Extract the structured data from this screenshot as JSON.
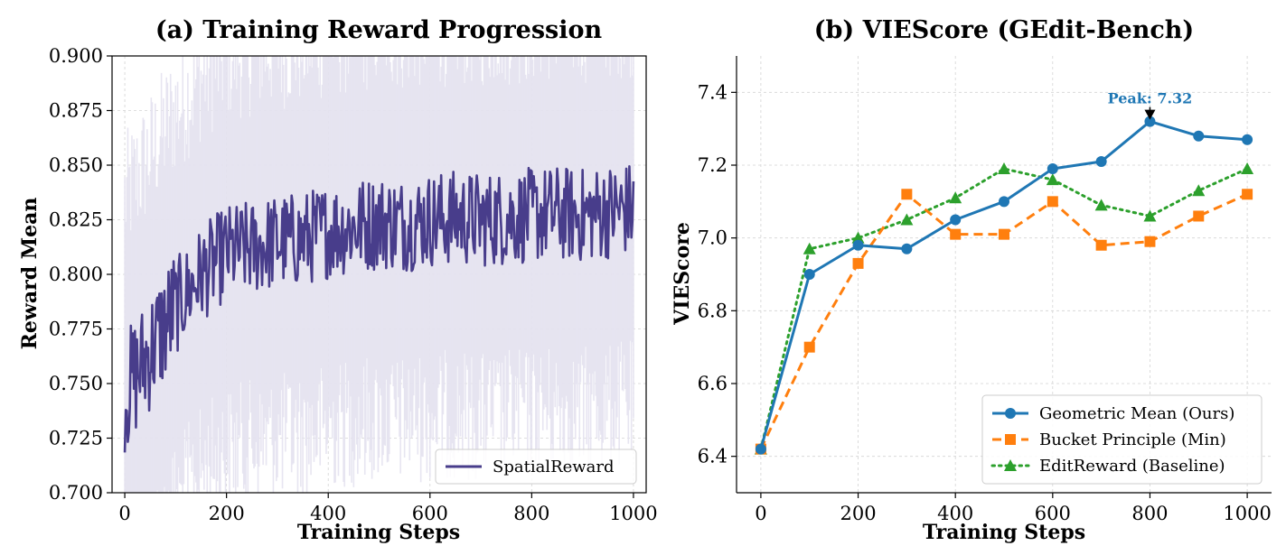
{
  "chart_data": [
    {
      "id": "a",
      "type": "line",
      "title": "(a) Training Reward Progression",
      "xlabel": "Training Steps",
      "ylabel": "Reward Mean",
      "xlim": [
        -25,
        1025
      ],
      "ylim": [
        0.7,
        0.9
      ],
      "xticks": [
        "0",
        "200",
        "400",
        "600",
        "800",
        "1000"
      ],
      "yticks": [
        "0.700",
        "0.725",
        "0.750",
        "0.775",
        "0.800",
        "0.825",
        "0.850",
        "0.875",
        "0.900"
      ],
      "grid": true,
      "legend": {
        "placement": "lower-right",
        "entries": [
          "SpatialReward"
        ]
      },
      "series": [
        {
          "name": "SpatialReward",
          "color": "#483d8b",
          "x": [
            0,
            50,
            100,
            150,
            200,
            250,
            300,
            350,
            400,
            450,
            500,
            550,
            600,
            650,
            700,
            750,
            800,
            850,
            900,
            950,
            1000
          ],
          "y": [
            0.745,
            0.765,
            0.785,
            0.8,
            0.81,
            0.812,
            0.815,
            0.816,
            0.82,
            0.822,
            0.824,
            0.823,
            0.825,
            0.826,
            0.825,
            0.826,
            0.827,
            0.828,
            0.827,
            0.829,
            0.83
          ],
          "noise_min": 0.713,
          "noise_max": 0.884
        }
      ]
    },
    {
      "id": "b",
      "type": "line",
      "title": "(b) VIEScore (GEdit-Bench)",
      "xlabel": "Training Steps",
      "ylabel": "VIEScore",
      "xlim": [
        -50,
        1050
      ],
      "ylim": [
        6.3,
        7.5
      ],
      "xticks": [
        "0",
        "200",
        "400",
        "600",
        "800",
        "1000"
      ],
      "yticks": [
        "6.4",
        "6.6",
        "6.8",
        "7.0",
        "7.2",
        "7.4"
      ],
      "grid": true,
      "legend": {
        "placement": "lower-right"
      },
      "x": [
        0,
        100,
        200,
        300,
        400,
        500,
        600,
        700,
        800,
        900,
        1000
      ],
      "series": [
        {
          "name": "Geometric Mean (Ours)",
          "color": "#1f77b4",
          "marker": "circle",
          "dash": "solid",
          "values": [
            6.42,
            6.9,
            6.98,
            6.97,
            7.05,
            7.1,
            7.19,
            7.21,
            7.32,
            7.28,
            7.27
          ]
        },
        {
          "name": "Bucket Principle (Min)",
          "color": "#ff7f0e",
          "marker": "square",
          "dash": "dashed",
          "values": [
            6.42,
            6.7,
            6.93,
            7.12,
            7.01,
            7.01,
            7.1,
            6.98,
            6.99,
            7.06,
            7.12
          ]
        },
        {
          "name": "EditReward (Baseline)",
          "color": "#2ca02c",
          "marker": "triangle",
          "dash": "dotted",
          "values": [
            6.42,
            6.97,
            7.0,
            7.05,
            7.11,
            7.19,
            7.16,
            7.09,
            7.06,
            7.13,
            7.19
          ]
        }
      ],
      "annotation": {
        "text": "Peak: 7.32",
        "x": 800,
        "y": 7.32,
        "color": "#1f77b4"
      }
    }
  ]
}
